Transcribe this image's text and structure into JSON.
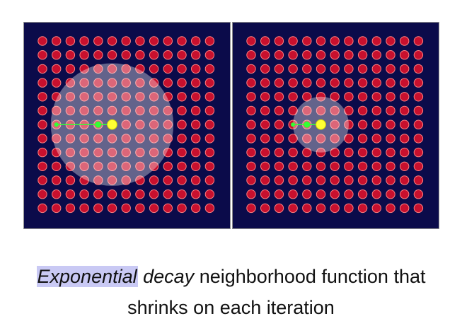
{
  "caption": {
    "word_highlighted": "Exponential",
    "word_italic": "decay",
    "line1_rest": "neighborhood function that",
    "line2": "shrinks on each iteration"
  },
  "colors": {
    "panel_background": "#0b0b4a",
    "node": "#c8102e",
    "node_ring": "#ff8080",
    "winner_node": "#ffff33",
    "link": "#33ff33",
    "neighborhood": "#ffffff",
    "highlight": "#c9c9f4"
  },
  "grid": {
    "rows": 13,
    "cols": 13
  },
  "panels": [
    {
      "name": "early-iteration",
      "winner": {
        "row": 6,
        "col": 5
      },
      "linked_nodes": [
        {
          "row": 6,
          "col": 1
        }
      ],
      "neighborhood_radius_nodes": 4.4
    },
    {
      "name": "later-iteration",
      "winner": {
        "row": 6,
        "col": 5
      },
      "linked_nodes": [
        {
          "row": 6,
          "col": 3
        }
      ],
      "neighborhood_radius_nodes": 2.0
    }
  ]
}
